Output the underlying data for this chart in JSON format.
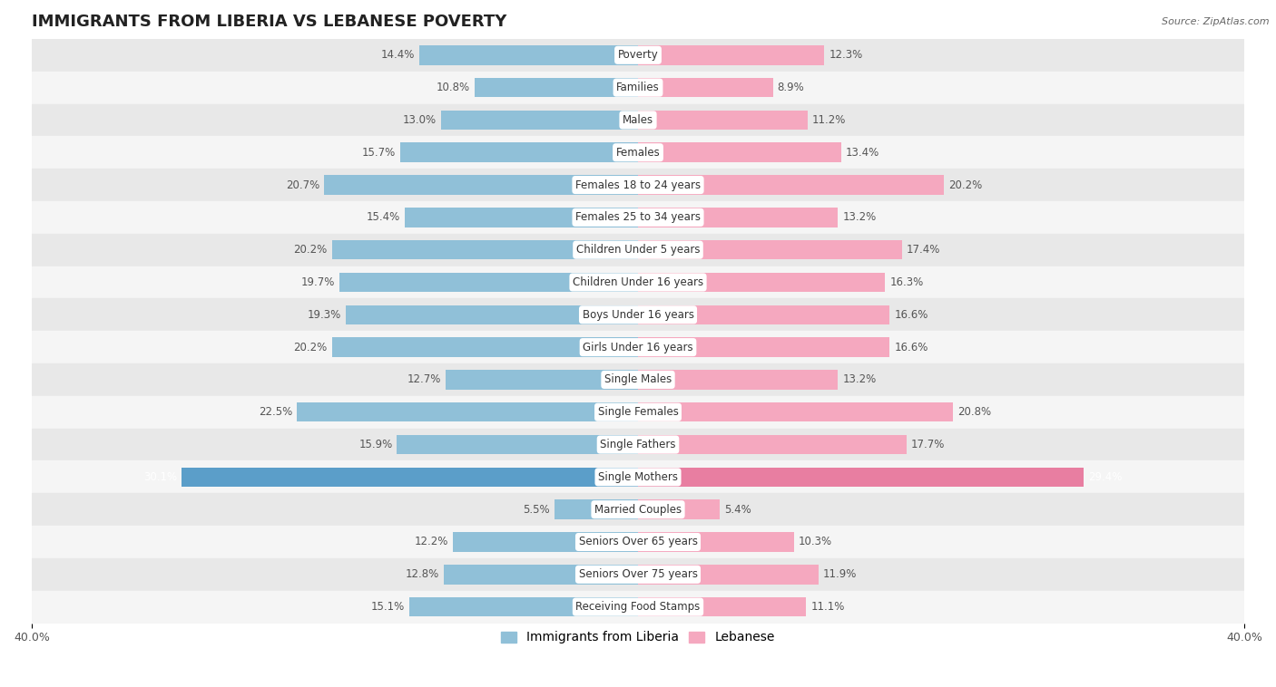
{
  "title": "IMMIGRANTS FROM LIBERIA VS LEBANESE POVERTY",
  "source": "Source: ZipAtlas.com",
  "categories": [
    "Poverty",
    "Families",
    "Males",
    "Females",
    "Females 18 to 24 years",
    "Females 25 to 34 years",
    "Children Under 5 years",
    "Children Under 16 years",
    "Boys Under 16 years",
    "Girls Under 16 years",
    "Single Males",
    "Single Females",
    "Single Fathers",
    "Single Mothers",
    "Married Couples",
    "Seniors Over 65 years",
    "Seniors Over 75 years",
    "Receiving Food Stamps"
  ],
  "liberia_values": [
    14.4,
    10.8,
    13.0,
    15.7,
    20.7,
    15.4,
    20.2,
    19.7,
    19.3,
    20.2,
    12.7,
    22.5,
    15.9,
    30.1,
    5.5,
    12.2,
    12.8,
    15.1
  ],
  "lebanese_values": [
    12.3,
    8.9,
    11.2,
    13.4,
    20.2,
    13.2,
    17.4,
    16.3,
    16.6,
    16.6,
    13.2,
    20.8,
    17.7,
    29.4,
    5.4,
    10.3,
    11.9,
    11.1
  ],
  "liberia_color": "#90c0d8",
  "lebanese_color": "#f5a8bf",
  "liberia_highlight_color": "#5b9ec9",
  "lebanese_highlight_color": "#e87ea1",
  "row_color_light": "#f5f5f5",
  "row_color_dark": "#e8e8e8",
  "bar_height": 0.6,
  "xlim": 40.0,
  "title_fontsize": 13,
  "label_fontsize": 8.5,
  "tick_fontsize": 9,
  "legend_fontsize": 10,
  "highlight_idx": 13
}
